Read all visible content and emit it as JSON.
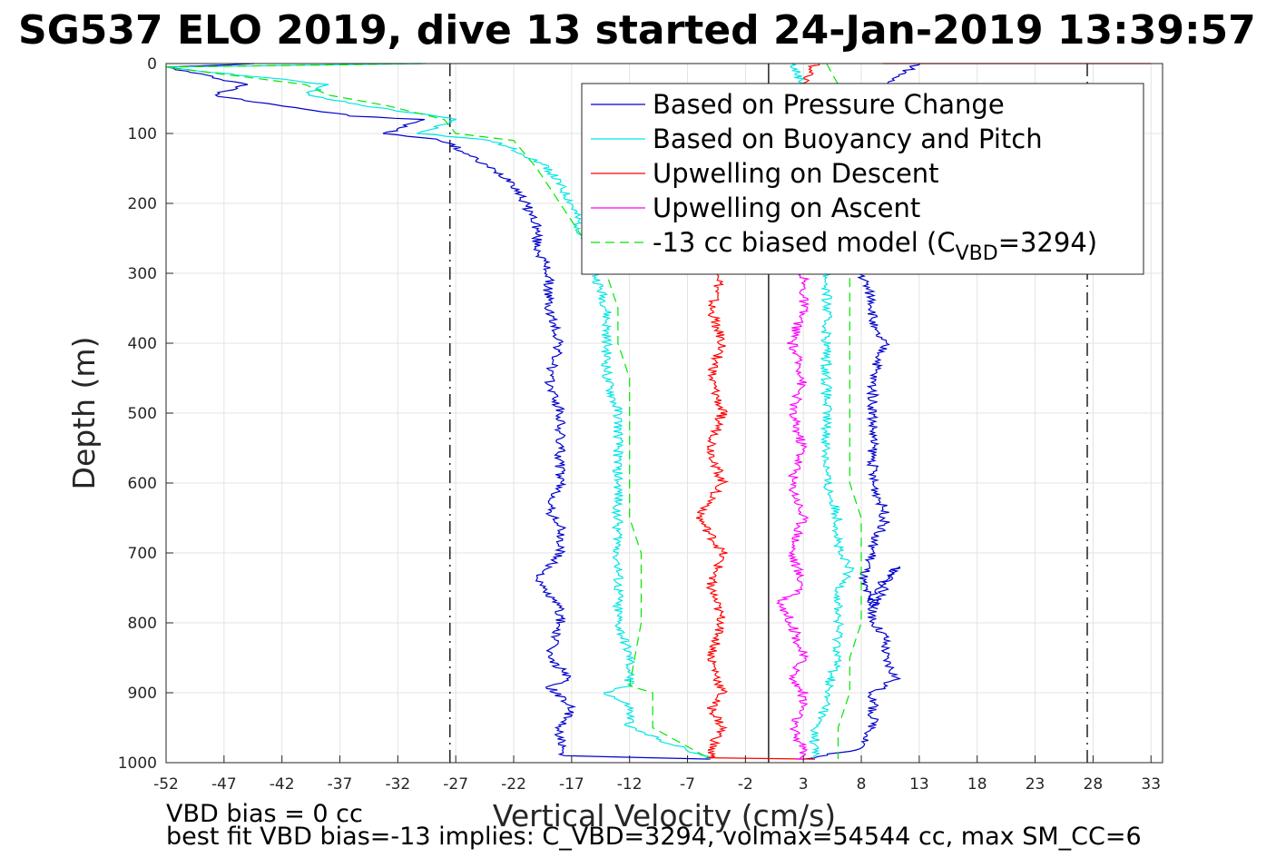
{
  "title": "SG537 ELO 2019, dive 13 started 24-Jan-2019 13:39:57",
  "footer": {
    "line1": "VBD bias = 0 cc",
    "line2": "best fit VBD bias=-13 implies: C_VBD=3294, volmax=54544 cc, max SM_CC=6"
  },
  "chart_data": {
    "type": "line",
    "xlabel": "Vertical Velocity (cm/s)",
    "ylabel": "Depth (m)",
    "xlim": [
      -52,
      34
    ],
    "ylim": [
      1000,
      0
    ],
    "y_reversed": true,
    "xticks": [
      "-52",
      "-47",
      "-42",
      "-37",
      "-32",
      "-27",
      "-22",
      "-17",
      "-12",
      "-7",
      "-2",
      "3",
      "8",
      "13",
      "18",
      "23",
      "28",
      "33"
    ],
    "yticks": [
      "0",
      "100",
      "200",
      "300",
      "400",
      "500",
      "600",
      "700",
      "800",
      "900",
      "1000"
    ],
    "grid": true,
    "legend_position": "top-right",
    "reference_lines": [
      {
        "style": "dash-dot",
        "color": "#000000",
        "x": -27.5
      },
      {
        "style": "solid",
        "color": "#000000",
        "x": 0
      },
      {
        "style": "dash-dot",
        "color": "#000000",
        "x": 27.5
      }
    ],
    "series": [
      {
        "name": "Based on Pressure Change",
        "color": "#0000cc",
        "style": "solid",
        "profiles": [
          {
            "x": [
              -44,
              -52,
              -45,
              -48,
              -44,
              -36,
              -30,
              -33,
              -28,
              -26,
              -24,
              -22,
              -21,
              -20,
              -20,
              -19,
              -19,
              -18,
              -19,
              -18,
              -18,
              -18,
              -19,
              -18,
              -18,
              -20,
              -18,
              -18,
              -19,
              -17,
              -19,
              -17,
              -18,
              -18,
              -5
            ],
            "y": [
              0,
              5,
              30,
              45,
              55,
              75,
              80,
              100,
              110,
              130,
              150,
              170,
              200,
              230,
              260,
              300,
              350,
              400,
              450,
              500,
              550,
              600,
              640,
              660,
              700,
              740,
              780,
              800,
              850,
              880,
              890,
              920,
              950,
              990,
              995
            ]
          },
          {
            "x": [
              13,
              10,
              8,
              9,
              9,
              10,
              9,
              9,
              9,
              9,
              10,
              10,
              9,
              9,
              8,
              9,
              11,
              9,
              9,
              10,
              10,
              11,
              9,
              9,
              9,
              8,
              3
            ],
            "y": [
              0,
              30,
              300,
              340,
              380,
              400,
              450,
              500,
              550,
              600,
              640,
              660,
              680,
              700,
              740,
              780,
              720,
              760,
              800,
              820,
              850,
              880,
              900,
              920,
              950,
              980,
              995
            ]
          }
        ]
      },
      {
        "name": "Based on Buoyancy and Pitch",
        "color": "#00e5e5",
        "style": "solid",
        "profiles": [
          {
            "x": [
              -30,
              -52,
              -38,
              -40,
              -35,
              -27,
              -30,
              -24,
              -21,
              -19,
              -17,
              -16,
              -15,
              -14,
              -14,
              -14,
              -13,
              -13,
              -13,
              -13,
              -13,
              -13,
              -13,
              -12,
              -12,
              -12,
              -14,
              -12,
              -12,
              -5
            ],
            "y": [
              0,
              5,
              30,
              45,
              60,
              80,
              100,
              110,
              130,
              150,
              200,
              250,
              300,
              350,
              400,
              450,
              500,
              550,
              600,
              650,
              700,
              750,
              800,
              850,
              880,
              890,
              900,
              920,
              950,
              995
            ]
          },
          {
            "x": [
              2,
              3,
              5,
              5,
              5,
              5,
              5,
              5,
              5,
              6,
              6,
              7,
              6,
              6,
              6,
              5,
              5,
              4,
              4
            ],
            "y": [
              0,
              30,
              300,
              350,
              400,
              450,
              500,
              550,
              600,
              650,
              700,
              720,
              760,
              800,
              850,
              900,
              920,
              950,
              995
            ]
          }
        ]
      },
      {
        "name": "Upwelling on Descent",
        "color": "#ff0000",
        "style": "solid",
        "profiles": [
          {
            "x": [
              4,
              -4,
              -5,
              -4,
              -5,
              -4,
              -5,
              -4,
              -6,
              -4,
              -5,
              -4,
              -5,
              -4,
              -5,
              -4,
              -5,
              -5,
              4
            ],
            "y": [
              0,
              300,
              350,
              400,
              450,
              500,
              550,
              600,
              650,
              700,
              750,
              800,
              850,
              900,
              920,
              950,
              980,
              993,
              995
            ]
          },
          {
            "x": [
              10,
              33
            ],
            "y": [
              0,
              0
            ]
          }
        ]
      },
      {
        "name": "Upwelling on Ascent",
        "color": "#ff00ff",
        "style": "solid",
        "profiles": [
          {
            "x": [
              3,
              3,
              2,
              3,
              2,
              3,
              2,
              3,
              2,
              3,
              1,
              2,
              3,
              2,
              3,
              3,
              2,
              3,
              3,
              2,
              3
            ],
            "y": [
              300,
              350,
              400,
              450,
              500,
              550,
              600,
              650,
              700,
              750,
              770,
              800,
              850,
              880,
              900,
              920,
              950,
              980,
              995,
              995,
              995
            ]
          }
        ]
      },
      {
        "name": "-13 cc biased model (C_VBD=3294)",
        "legend_base": "-13 cc biased model (C",
        "legend_sub": "VBD",
        "legend_tail": "=3294)",
        "color": "#00e600",
        "style": "dashed",
        "profiles": [
          {
            "x": [
              -30,
              -52,
              -40,
              -38,
              -33,
              -28,
              -27,
              -22,
              -20,
              -18,
              -16,
              -14,
              -13,
              -13,
              -12,
              -12,
              -12,
              -12,
              -12,
              -11,
              -11,
              -11,
              -12,
              -10,
              -10,
              -5
            ],
            "y": [
              0,
              5,
              30,
              45,
              60,
              80,
              100,
              110,
              150,
              200,
              250,
              300,
              350,
              400,
              450,
              500,
              550,
              600,
              650,
              700,
              750,
              800,
              890,
              900,
              950,
              995
            ]
          },
          {
            "x": [
              5,
              6,
              7,
              7,
              7,
              7,
              7,
              7,
              7,
              8,
              8,
              8,
              8,
              8,
              7,
              7,
              6,
              6
            ],
            "y": [
              0,
              30,
              300,
              350,
              400,
              450,
              500,
              550,
              600,
              650,
              700,
              720,
              760,
              800,
              850,
              900,
              950,
              995
            ]
          }
        ]
      }
    ]
  }
}
